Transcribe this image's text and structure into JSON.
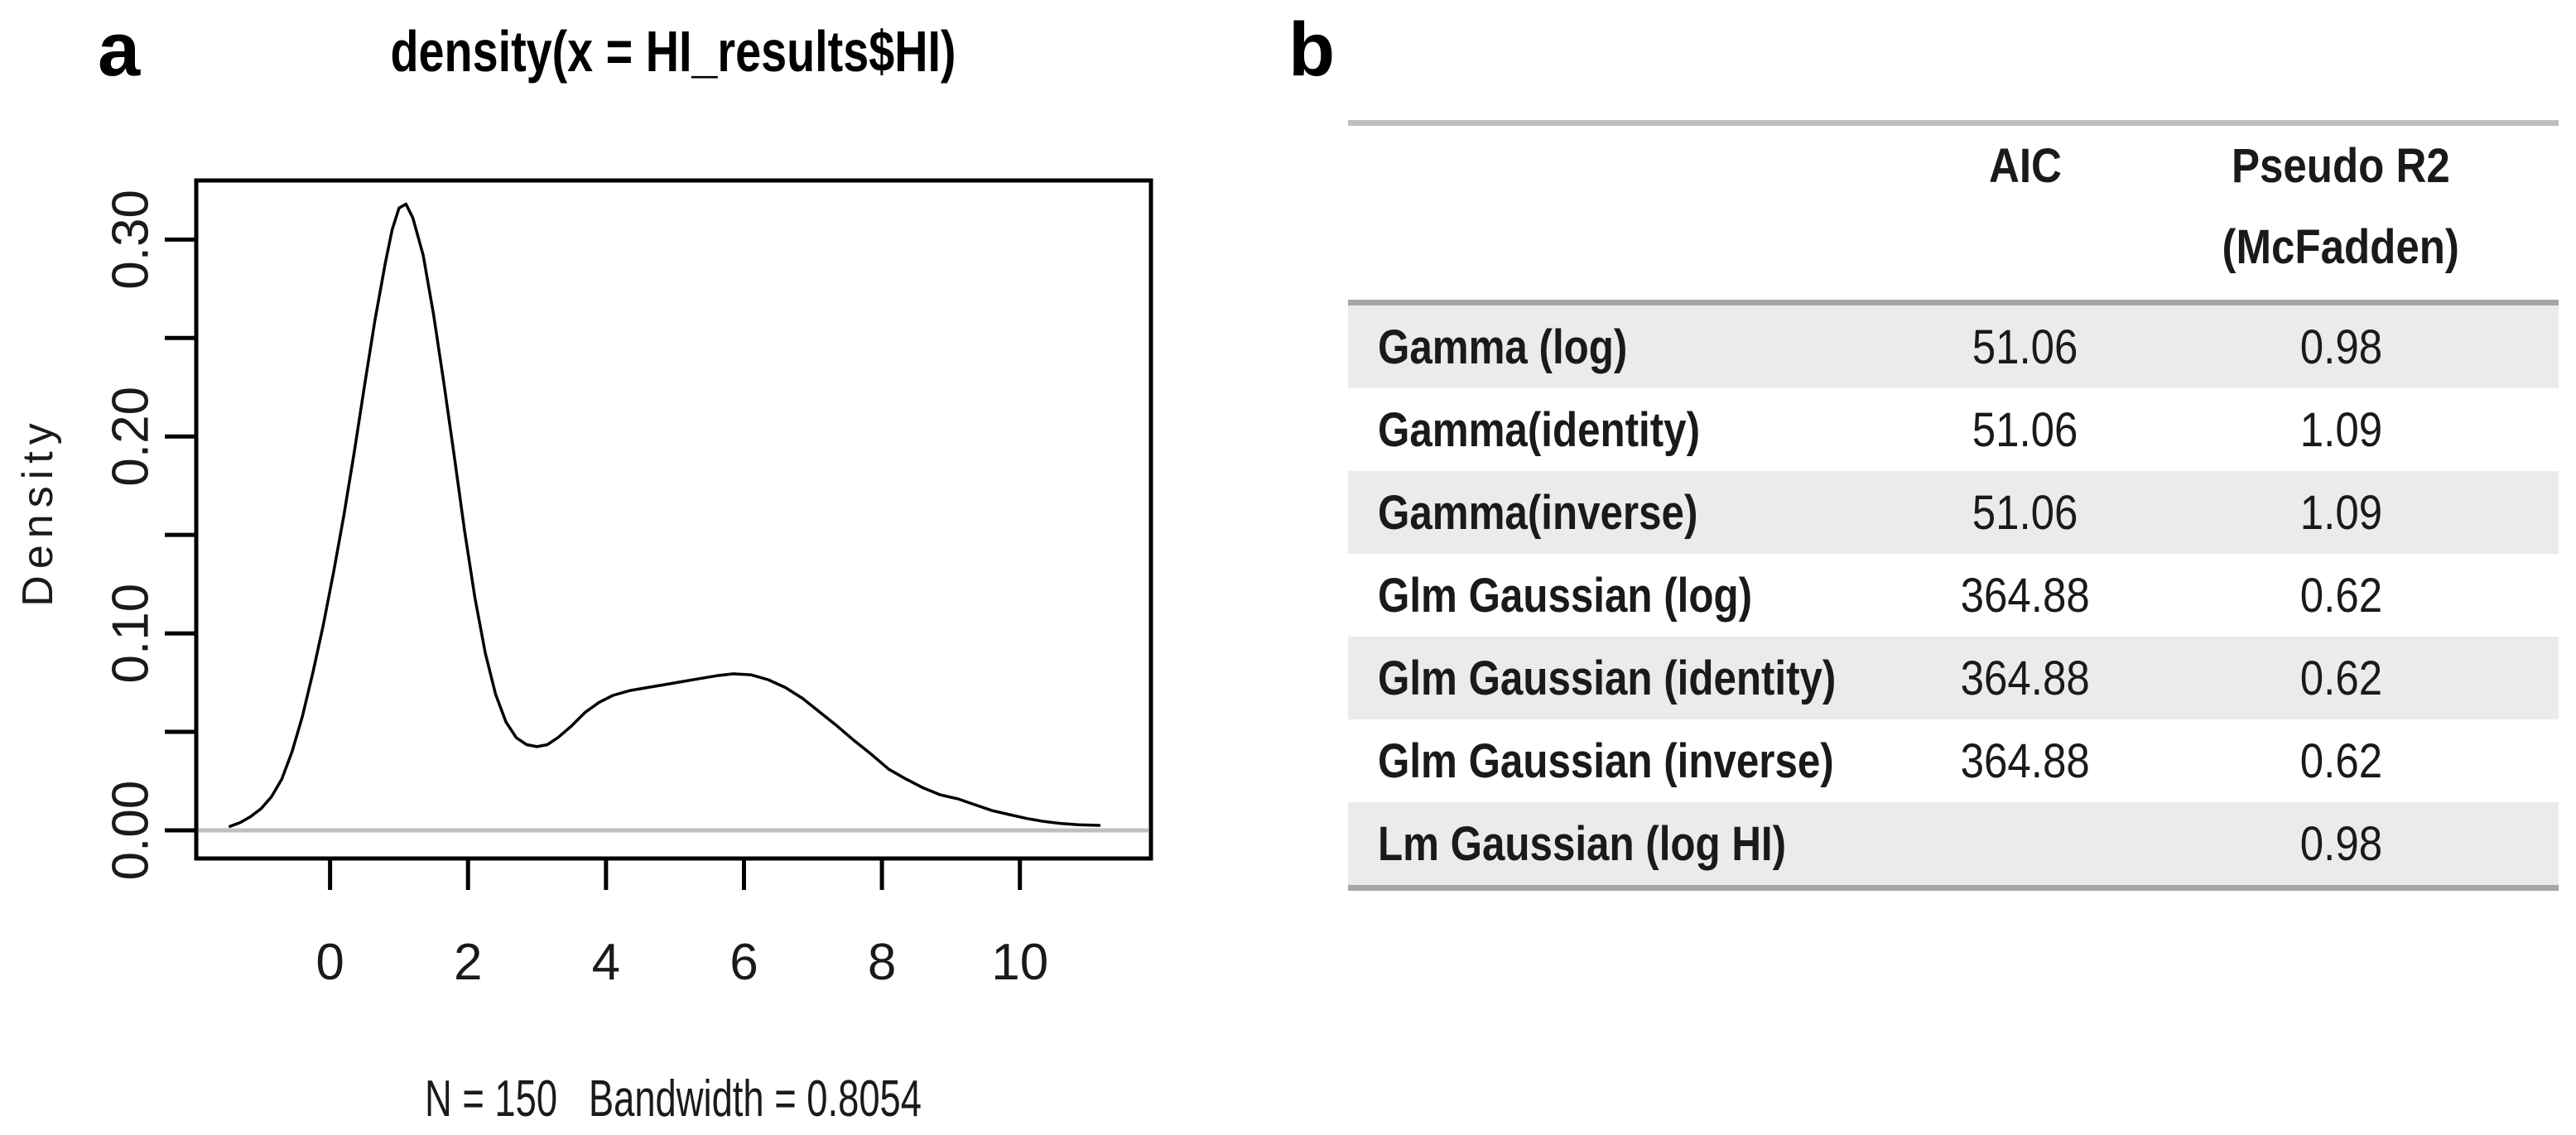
{
  "panels": {
    "a_label": "a",
    "b_label": "b"
  },
  "colors": {
    "curve": "#000000",
    "box": "#000000",
    "baseline_gray": "#bfbfbf",
    "table_rule": "#a6a6a6",
    "table_rule_top": "#bfbfbf",
    "row_stripe": "#ebebeb",
    "text": "#1a1a1a"
  },
  "chart_data": {
    "type": "line",
    "title": "density(x = HI_results$HI)",
    "subtitle": "N = 150   Bandwidth = 0.8054",
    "ylabel": "Density",
    "n": 150,
    "bandwidth": 0.8054,
    "grid": false,
    "xlim": [
      -1.94,
      11.9
    ],
    "ylim": [
      -0.0143,
      0.33
    ],
    "xticks": [
      {
        "v": 0,
        "label": "0"
      },
      {
        "v": 2,
        "label": "2"
      },
      {
        "v": 4,
        "label": "4"
      },
      {
        "v": 6,
        "label": "6"
      },
      {
        "v": 8,
        "label": "8"
      },
      {
        "v": 10,
        "label": "10"
      }
    ],
    "yticks": [
      {
        "v": 0.0,
        "label": "0.00"
      },
      {
        "v": 0.05,
        "label": ""
      },
      {
        "v": 0.1,
        "label": "0.10"
      },
      {
        "v": 0.15,
        "label": ""
      },
      {
        "v": 0.2,
        "label": "0.20"
      },
      {
        "v": 0.25,
        "label": ""
      },
      {
        "v": 0.3,
        "label": "0.30"
      }
    ],
    "zero_baseline": true,
    "points": [
      [
        -1.45,
        0.002
      ],
      [
        -1.3,
        0.004
      ],
      [
        -1.15,
        0.007
      ],
      [
        -1.0,
        0.011
      ],
      [
        -0.85,
        0.017
      ],
      [
        -0.7,
        0.026
      ],
      [
        -0.55,
        0.04
      ],
      [
        -0.4,
        0.058
      ],
      [
        -0.25,
        0.08
      ],
      [
        -0.1,
        0.104
      ],
      [
        0.05,
        0.131
      ],
      [
        0.2,
        0.16
      ],
      [
        0.35,
        0.192
      ],
      [
        0.5,
        0.226
      ],
      [
        0.65,
        0.259
      ],
      [
        0.8,
        0.288
      ],
      [
        0.9,
        0.305
      ],
      [
        1.0,
        0.316
      ],
      [
        1.1,
        0.318
      ],
      [
        1.2,
        0.311
      ],
      [
        1.35,
        0.292
      ],
      [
        1.5,
        0.262
      ],
      [
        1.65,
        0.227
      ],
      [
        1.8,
        0.19
      ],
      [
        1.95,
        0.152
      ],
      [
        2.1,
        0.118
      ],
      [
        2.25,
        0.09
      ],
      [
        2.4,
        0.069
      ],
      [
        2.55,
        0.055
      ],
      [
        2.7,
        0.047
      ],
      [
        2.85,
        0.0435
      ],
      [
        3.0,
        0.0425
      ],
      [
        3.15,
        0.0435
      ],
      [
        3.3,
        0.047
      ],
      [
        3.5,
        0.053
      ],
      [
        3.7,
        0.06
      ],
      [
        3.9,
        0.065
      ],
      [
        4.1,
        0.0685
      ],
      [
        4.35,
        0.071
      ],
      [
        4.6,
        0.0725
      ],
      [
        4.85,
        0.074
      ],
      [
        5.1,
        0.0755
      ],
      [
        5.35,
        0.077
      ],
      [
        5.6,
        0.0785
      ],
      [
        5.85,
        0.0795
      ],
      [
        6.1,
        0.079
      ],
      [
        6.35,
        0.0765
      ],
      [
        6.6,
        0.0725
      ],
      [
        6.85,
        0.067
      ],
      [
        7.1,
        0.06
      ],
      [
        7.35,
        0.053
      ],
      [
        7.6,
        0.0455
      ],
      [
        7.85,
        0.0385
      ],
      [
        8.1,
        0.031
      ],
      [
        8.35,
        0.026
      ],
      [
        8.6,
        0.0215
      ],
      [
        8.85,
        0.018
      ],
      [
        9.1,
        0.016
      ],
      [
        9.35,
        0.013
      ],
      [
        9.6,
        0.01
      ],
      [
        9.85,
        0.008
      ],
      [
        10.1,
        0.006
      ],
      [
        10.35,
        0.0045
      ],
      [
        10.6,
        0.0035
      ],
      [
        10.85,
        0.0028
      ],
      [
        11.15,
        0.0025
      ]
    ]
  },
  "table": {
    "headers": {
      "aic": "AIC",
      "r2_line1": "Pseudo R2",
      "r2_line2": "(McFadden)"
    },
    "rows": [
      {
        "model": "Gamma (log)",
        "aic": "51.06",
        "r2": "0.98"
      },
      {
        "model": "Gamma(identity)",
        "aic": "51.06",
        "r2": "1.09"
      },
      {
        "model": "Gamma(inverse)",
        "aic": "51.06",
        "r2": "1.09"
      },
      {
        "model": "Glm Gaussian (log)",
        "aic": "364.88",
        "r2": "0.62"
      },
      {
        "model": "Glm Gaussian (identity)",
        "aic": "364.88",
        "r2": "0.62"
      },
      {
        "model": "Glm Gaussian (inverse)",
        "aic": "364.88",
        "r2": "0.62"
      },
      {
        "model": "Lm Gaussian (log HI)",
        "aic": "",
        "r2": "0.98"
      }
    ]
  }
}
